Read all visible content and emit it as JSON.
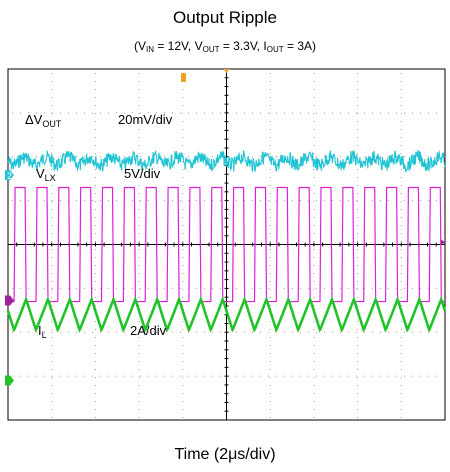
{
  "title": "Output Ripple",
  "subtitle": {
    "p1": "(V",
    "s1": "IN",
    "p2": " = 12V, V",
    "s2": "OUT",
    "p3": " = 3.3V, I",
    "s3": "OUT",
    "p4": " = 3A)"
  },
  "xlabel": "Time (2μs/div)",
  "channels": {
    "vout": {
      "sym": "ΔV",
      "sub": "OUT",
      "scale": "20mV/div",
      "marker": "2",
      "color": "#22c4d4"
    },
    "vlx": {
      "sym": "V",
      "sub": "LX",
      "scale": "5V/div",
      "color": "#e020d8"
    },
    "il": {
      "sym": "I",
      "sub": "L",
      "scale": "2A/div",
      "color": "#22c22a"
    }
  },
  "trigger_color": "#f0a020",
  "chart_data": {
    "type": "line",
    "title": "Output Ripple",
    "xlabel": "Time (2μs/div)",
    "divisions": {
      "x": 10,
      "y": 8
    },
    "time_per_div_us": 2,
    "switching_cycles_on_screen": 20,
    "series": [
      {
        "name": "ΔVOUT",
        "scale": "20mV/div",
        "waveform": "ripple",
        "ripple_pp_div": 0.4
      },
      {
        "name": "VLX",
        "scale": "5V/div",
        "waveform": "square",
        "high_div": 2.6,
        "low_div": 0,
        "duty": 0.55
      },
      {
        "name": "IL",
        "scale": "2A/div",
        "waveform": "triangle",
        "pp_div": 0.7
      }
    ]
  }
}
